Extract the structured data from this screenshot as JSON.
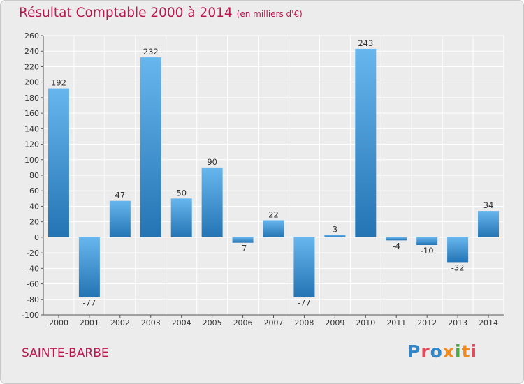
{
  "header": {
    "title": "Résultat Comptable 2000 à 2014",
    "subtitle": "(en milliers d'€)"
  },
  "footer": {
    "commune": "SAINTE-BARBE",
    "logo_text": "Proxiti"
  },
  "colors": {
    "title": "#b8184f",
    "bar_light": "#67b6ee",
    "bar_dark": "#2474b4",
    "plot_bg": "#ececec",
    "grid": "#ffffff",
    "logo": [
      "#2f86c8",
      "#e04b5a",
      "#2f86c8",
      "#f28a1e",
      "#49a942",
      "#f28a1e",
      "#e04b5a"
    ]
  },
  "chart_data": {
    "type": "bar",
    "title": "Résultat Comptable 2000 à 2014",
    "subtitle": "(en milliers d'€)",
    "xlabel": "",
    "ylabel": "",
    "categories": [
      "2000",
      "2001",
      "2002",
      "2003",
      "2004",
      "2005",
      "2006",
      "2007",
      "2008",
      "2009",
      "2010",
      "2011",
      "2012",
      "2013",
      "2014"
    ],
    "values": [
      192,
      -77,
      47,
      232,
      50,
      90,
      -7,
      22,
      -77,
      3,
      243,
      -4,
      -10,
      -32,
      34
    ],
    "value_labels": [
      "192",
      "-77",
      "47",
      "232",
      "50",
      "90",
      "-7",
      "22",
      "-77",
      "3",
      "243",
      "-4",
      "-10",
      "-32",
      "34"
    ],
    "ylim": [
      -100,
      260
    ],
    "yticks": [
      -100,
      -80,
      -60,
      -40,
      -20,
      0,
      20,
      40,
      60,
      80,
      100,
      120,
      140,
      160,
      180,
      200,
      220,
      240,
      260
    ],
    "ytick_labels": [
      "-100",
      "-80",
      "-60",
      "-40",
      "-20",
      "0",
      "20",
      "40",
      "60",
      "80",
      "100",
      "120",
      "140",
      "160",
      "180",
      "200",
      "220",
      "240",
      "260"
    ],
    "grid": true
  }
}
